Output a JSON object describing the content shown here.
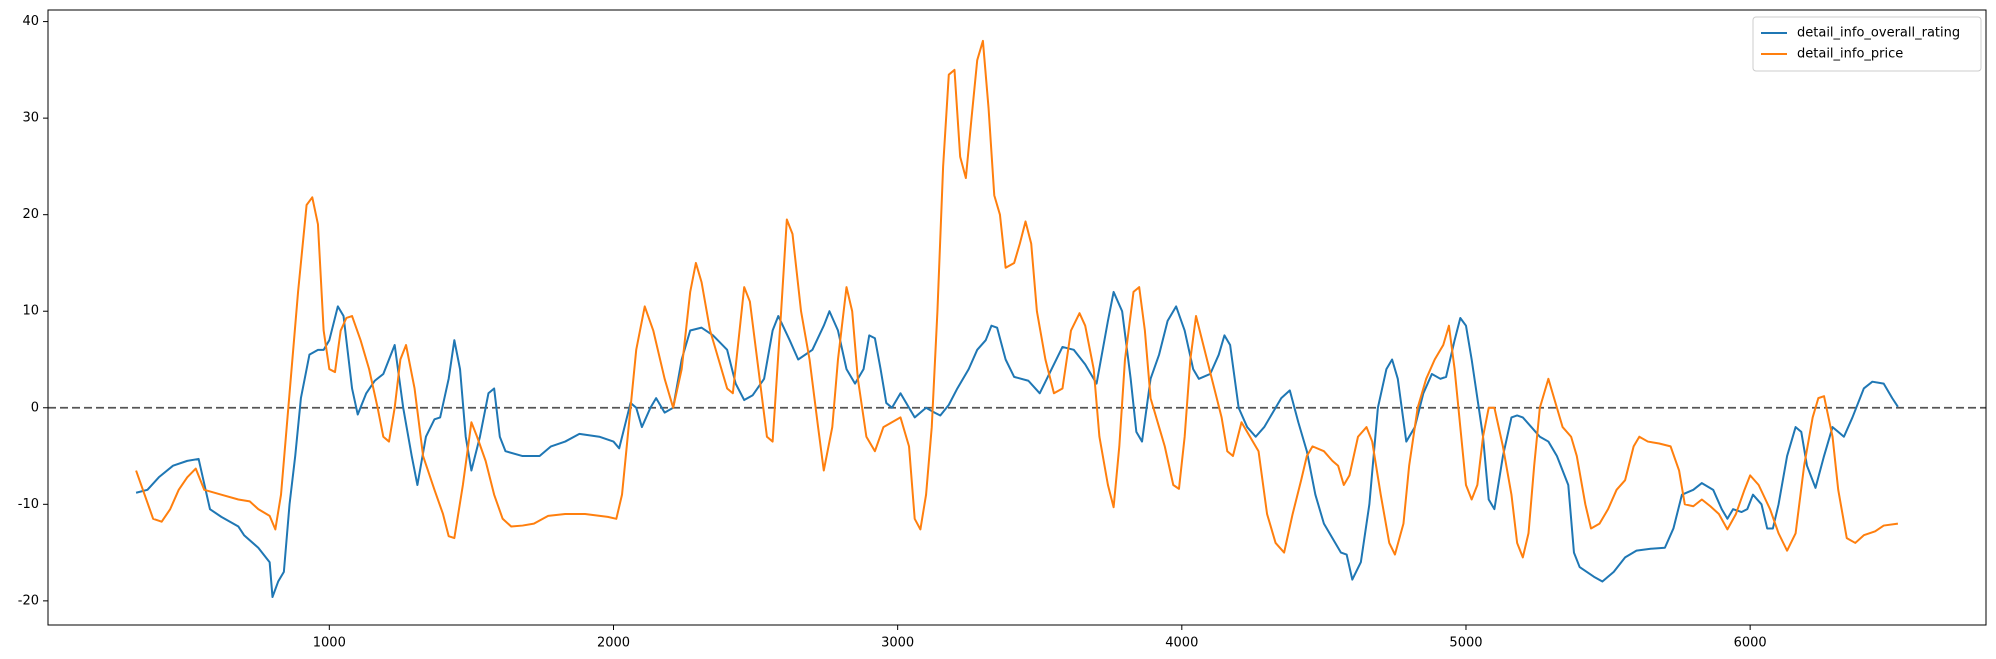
{
  "chart_data": {
    "type": "line",
    "xlim": [
      10,
      6830
    ],
    "ylim": [
      -22.5,
      41.2
    ],
    "xticks": [
      1000,
      2000,
      3000,
      4000,
      5000,
      6000
    ],
    "yticks": [
      -20,
      -10,
      0,
      10,
      20,
      30,
      40
    ],
    "grid": false,
    "legend": "upper right",
    "hline": {
      "y": 0,
      "color": "#555555",
      "style": "dashed"
    },
    "series": [
      {
        "name": "detail_info_overall_rating",
        "color": "#1f77b4",
        "x": [
          320,
          360,
          400,
          450,
          500,
          540,
          580,
          620,
          680,
          700,
          750,
          790,
          800,
          820,
          840,
          860,
          880,
          900,
          930,
          960,
          980,
          1000,
          1030,
          1050,
          1080,
          1100,
          1130,
          1160,
          1190,
          1230,
          1260,
          1290,
          1310,
          1340,
          1370,
          1390,
          1420,
          1440,
          1460,
          1480,
          1500,
          1530,
          1560,
          1580,
          1600,
          1620,
          1680,
          1740,
          1780,
          1830,
          1880,
          1950,
          2000,
          2020,
          2060,
          2080,
          2100,
          2130,
          2150,
          2180,
          2210,
          2240,
          2270,
          2310,
          2350,
          2400,
          2430,
          2460,
          2490,
          2530,
          2560,
          2580,
          2620,
          2650,
          2700,
          2740,
          2760,
          2790,
          2820,
          2850,
          2880,
          2900,
          2920,
          2940,
          2960,
          2980,
          3010,
          3040,
          3060,
          3100,
          3130,
          3150,
          3180,
          3210,
          3250,
          3280,
          3310,
          3330,
          3350,
          3380,
          3410,
          3460,
          3500,
          3550,
          3580,
          3620,
          3660,
          3700,
          3740,
          3760,
          3790,
          3820,
          3840,
          3860,
          3890,
          3920,
          3950,
          3980,
          4010,
          4040,
          4060,
          4100,
          4130,
          4150,
          4170,
          4200,
          4230,
          4260,
          4290,
          4320,
          4350,
          4380,
          4410,
          4440,
          4470,
          4500,
          4530,
          4560,
          4580,
          4600,
          4630,
          4660,
          4690,
          4720,
          4740,
          4760,
          4790,
          4820,
          4850,
          4880,
          4910,
          4930,
          4960,
          4980,
          5000,
          5020,
          5040,
          5060,
          5080,
          5100,
          5130,
          5160,
          5180,
          5200,
          5230,
          5260,
          5290,
          5320,
          5360,
          5380,
          5400,
          5450,
          5480,
          5520,
          5560,
          5600,
          5650,
          5700,
          5730,
          5760,
          5800,
          5830,
          5870,
          5900,
          5920,
          5940,
          5970,
          5990,
          6010,
          6040,
          6060,
          6080,
          6100,
          6130,
          6160,
          6180,
          6200,
          6230,
          6260,
          6290,
          6310,
          6330,
          6360,
          6400,
          6430,
          6470,
          6500,
          6520
        ],
        "values": [
          -8.8,
          -8.5,
          -7.2,
          -6,
          -5.5,
          -5.3,
          -10.5,
          -11.3,
          -12.3,
          -13.2,
          -14.5,
          -16,
          -19.6,
          -18,
          -17,
          -10,
          -5,
          1,
          5.5,
          6,
          6,
          7,
          10.5,
          9.5,
          2,
          -0.7,
          1.5,
          2.8,
          3.5,
          6.5,
          0,
          -5,
          -8,
          -3,
          -1.2,
          -1,
          3,
          7,
          4,
          -3,
          -6.5,
          -3,
          1.5,
          2,
          -3,
          -4.5,
          -5,
          -5,
          -4,
          -3.5,
          -2.7,
          -3,
          -3.5,
          -4.2,
          0.5,
          0,
          -2,
          0,
          1,
          -0.5,
          0,
          5,
          8,
          8.3,
          7.5,
          6,
          2.5,
          0.8,
          1.3,
          3,
          8,
          9.5,
          7,
          5,
          6,
          8.5,
          10,
          8,
          4,
          2.5,
          4,
          7.5,
          7.2,
          4,
          0.5,
          0,
          1.5,
          0,
          -1,
          0,
          -0.5,
          -0.8,
          0.3,
          2,
          4,
          6,
          7,
          8.5,
          8.3,
          5,
          3.2,
          2.8,
          1.5,
          4.5,
          6.3,
          6,
          4.5,
          2.5,
          9,
          12,
          10,
          3,
          -2.5,
          -3.5,
          3,
          5.5,
          9,
          10.5,
          8,
          4,
          3,
          3.5,
          5.5,
          7.5,
          6.5,
          0,
          -2,
          -3,
          -2,
          -0.5,
          1,
          1.8,
          -1.5,
          -4.5,
          -9,
          -12,
          -13.5,
          -15,
          -15.2,
          -17.8,
          -16,
          -10,
          0,
          4,
          5,
          3,
          -3.5,
          -2,
          1.5,
          3.5,
          3,
          3.2,
          7,
          9.3,
          8.5,
          5,
          1,
          -3,
          -9.5,
          -10.5,
          -5,
          -1,
          -0.8,
          -1,
          -2,
          -3,
          -3.5,
          -5,
          -8,
          -15,
          -16.5,
          -17.5,
          -18,
          -17,
          -15.5,
          -14.8,
          -14.6,
          -14.5,
          -12.5,
          -9,
          -8.5,
          -7.8,
          -8.5,
          -10.5,
          -11.5,
          -10.5,
          -10.8,
          -10.5,
          -9,
          -10,
          -12.5,
          -12.5,
          -10,
          -5,
          -2,
          -2.5,
          -6,
          -8.3,
          -5,
          -2,
          -2.5,
          -3,
          -1,
          2,
          2.7,
          2.5,
          1,
          0.1
        ]
      },
      {
        "name": "detail_info_price",
        "color": "#ff7f0e",
        "x": [
          320,
          350,
          380,
          410,
          440,
          470,
          500,
          530,
          560,
          620,
          680,
          720,
          750,
          790,
          810,
          830,
          850,
          870,
          890,
          920,
          940,
          960,
          980,
          1000,
          1020,
          1040,
          1060,
          1080,
          1110,
          1140,
          1170,
          1190,
          1210,
          1230,
          1250,
          1270,
          1300,
          1330,
          1370,
          1400,
          1420,
          1440,
          1470,
          1500,
          1520,
          1550,
          1580,
          1610,
          1640,
          1680,
          1720,
          1770,
          1830,
          1900,
          1980,
          2010,
          2030,
          2060,
          2080,
          2110,
          2140,
          2180,
          2210,
          2240,
          2270,
          2290,
          2310,
          2340,
          2370,
          2400,
          2420,
          2460,
          2480,
          2510,
          2540,
          2560,
          2590,
          2610,
          2630,
          2660,
          2690,
          2720,
          2740,
          2770,
          2790,
          2820,
          2840,
          2860,
          2890,
          2920,
          2950,
          2980,
          3010,
          3040,
          3060,
          3080,
          3100,
          3120,
          3140,
          3160,
          3180,
          3200,
          3220,
          3240,
          3260,
          3280,
          3300,
          3320,
          3340,
          3360,
          3380,
          3410,
          3430,
          3450,
          3470,
          3490,
          3520,
          3550,
          3580,
          3610,
          3640,
          3660,
          3690,
          3710,
          3740,
          3760,
          3780,
          3800,
          3830,
          3850,
          3870,
          3890,
          3920,
          3940,
          3970,
          3990,
          4010,
          4030,
          4050,
          4080,
          4110,
          4140,
          4160,
          4180,
          4210,
          4240,
          4270,
          4300,
          4330,
          4360,
          4390,
          4420,
          4440,
          4460,
          4500,
          4530,
          4550,
          4570,
          4590,
          4620,
          4650,
          4670,
          4700,
          4730,
          4750,
          4780,
          4800,
          4830,
          4860,
          4890,
          4920,
          4940,
          4960,
          4980,
          5000,
          5020,
          5040,
          5060,
          5080,
          5100,
          5130,
          5160,
          5180,
          5200,
          5220,
          5240,
          5260,
          5290,
          5310,
          5340,
          5370,
          5390,
          5420,
          5440,
          5470,
          5500,
          5530,
          5560,
          5590,
          5610,
          5640,
          5680,
          5720,
          5750,
          5770,
          5800,
          5830,
          5860,
          5890,
          5920,
          5950,
          5980,
          6000,
          6030,
          6070,
          6100,
          6130,
          6160,
          6190,
          6220,
          6240,
          6260,
          6290,
          6310,
          6340,
          6370,
          6400,
          6440,
          6470,
          6520
        ],
        "values": [
          -6.5,
          -9,
          -11.5,
          -11.8,
          -10.5,
          -8.5,
          -7.2,
          -6.3,
          -8.5,
          -9,
          -9.5,
          -9.7,
          -10.5,
          -11.2,
          -12.6,
          -9,
          -2,
          5,
          12,
          21,
          21.8,
          19,
          8,
          4,
          3.7,
          8,
          9.3,
          9.5,
          7,
          4,
          0,
          -3,
          -3.5,
          0,
          5,
          6.5,
          2,
          -5,
          -8.5,
          -11,
          -13.3,
          -13.5,
          -8,
          -1.5,
          -3,
          -5.5,
          -9,
          -11.5,
          -12.3,
          -12.2,
          -12,
          -11.2,
          -11,
          -11,
          -11.3,
          -11.5,
          -9,
          0,
          6,
          10.5,
          8,
          3,
          0,
          4,
          12,
          15,
          13,
          8,
          5,
          2,
          1.5,
          12.5,
          11,
          4,
          -3,
          -3.5,
          10,
          19.5,
          18,
          10,
          5,
          -2,
          -6.5,
          -2,
          5,
          12.5,
          10,
          3,
          -3,
          -4.5,
          -2,
          -1.5,
          -1,
          -4,
          -11.5,
          -12.6,
          -9,
          -2,
          10,
          25,
          34.5,
          35,
          26,
          23.8,
          30,
          36,
          38,
          31,
          22,
          20,
          14.5,
          15,
          17,
          19.3,
          17,
          10,
          5,
          1.5,
          2,
          8,
          9.8,
          8.5,
          4,
          -3,
          -8,
          -10.3,
          -4,
          5,
          12,
          12.5,
          8,
          1,
          -2,
          -4,
          -8,
          -8.4,
          -3,
          5,
          9.5,
          6,
          2.5,
          -1,
          -4.5,
          -5,
          -1.5,
          -3,
          -4.5,
          -11,
          -14,
          -15,
          -11,
          -7.5,
          -5,
          -4,
          -4.5,
          -5.5,
          -6,
          -8,
          -7,
          -3,
          -2,
          -3.5,
          -9,
          -14,
          -15.2,
          -12,
          -6,
          0,
          3,
          5,
          6.5,
          8.5,
          4,
          -2,
          -8,
          -9.5,
          -8,
          -3,
          0,
          0,
          -4,
          -9,
          -14,
          -15.5,
          -13,
          -6,
          0,
          3,
          1,
          -2,
          -3,
          -5,
          -10,
          -12.5,
          -12,
          -10.5,
          -8.5,
          -7.5,
          -4,
          -3,
          -3.5,
          -3.7,
          -4,
          -6.5,
          -10,
          -10.2,
          -9.5,
          -10.2,
          -11,
          -12.6,
          -11,
          -8.5,
          -7,
          -8,
          -10.5,
          -13,
          -14.8,
          -13,
          -6,
          -1,
          1,
          1.2,
          -3,
          -8.5,
          -13.5,
          -14,
          -13.2,
          -12.8,
          -12.2,
          -12
        ]
      }
    ]
  }
}
